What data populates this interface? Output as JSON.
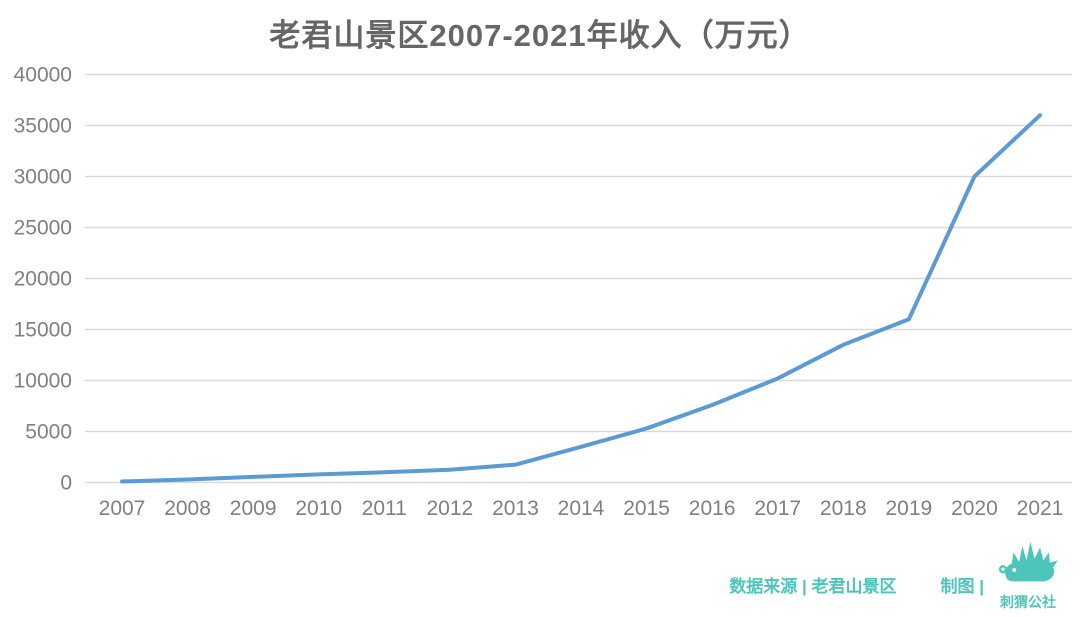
{
  "chart_data": {
    "type": "line",
    "title": "老君山景区2007-2021年收入（万元）",
    "categories": [
      "2007",
      "2008",
      "2009",
      "2010",
      "2011",
      "2012",
      "2013",
      "2014",
      "2015",
      "2016",
      "2017",
      "2018",
      "2019",
      "2020",
      "2021"
    ],
    "values": [
      100,
      300,
      550,
      800,
      1000,
      1250,
      1750,
      3500,
      5300,
      7600,
      10200,
      13500,
      16000,
      30000,
      36000
    ],
    "xlabel": "",
    "ylabel": "",
    "ylim": [
      0,
      40000
    ],
    "ytick_step": 5000,
    "yticks": [
      "0",
      "5000",
      "10000",
      "15000",
      "20000",
      "25000",
      "30000",
      "35000",
      "40000"
    ],
    "grid": "horizontal",
    "legend": "none"
  },
  "footer": {
    "source_label": "数据来源 | 老君山景区",
    "credit_label": "制图 |",
    "logo_text": "刺猬公社"
  },
  "colors": {
    "background": "#ffffff",
    "title": "#666666",
    "axis_label": "#808080",
    "gridline": "#d9d9d9",
    "line": "#5b9bd5",
    "accent": "#4ec5ba"
  }
}
